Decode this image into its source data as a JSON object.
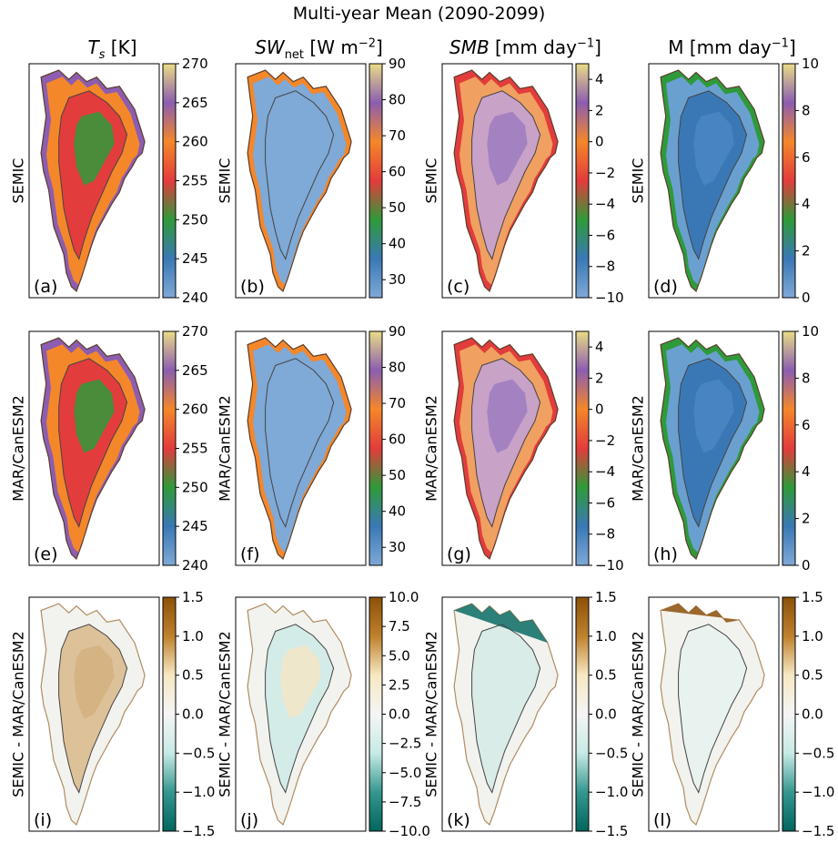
{
  "figure": {
    "title": "Multi-year Mean (2090-2099)",
    "columns": [
      {
        "var": "T",
        "sub": "s",
        "unit": " [K]",
        "italic": true
      },
      {
        "var": "SW",
        "sub": "net",
        "unit": " [W m",
        "sup": "−2",
        "tail": "]",
        "italic": true
      },
      {
        "var": "SMB",
        "sub": "",
        "unit": " [mm day",
        "sup": "−1",
        "tail": "]",
        "italic": true
      },
      {
        "var": "M",
        "sub": "",
        "unit": " [mm day",
        "sup": "−1",
        "tail": "]",
        "italic": false
      }
    ],
    "rows": [
      "SEMIC",
      "MAR/CanESM2",
      "SEMIC - MAR/CanESM2"
    ],
    "panel_labels": [
      "(a)",
      "(b)",
      "(c)",
      "(d)",
      "(e)",
      "(f)",
      "(g)",
      "(h)",
      "(i)",
      "(j)",
      "(k)",
      "(l)"
    ],
    "colorbars": [
      [
        {
          "ticks": [
            "240",
            "245",
            "250",
            "255",
            "260",
            "265",
            "270"
          ],
          "cmap": "tab_sequential"
        },
        {
          "ticks": [
            "30",
            "40",
            "50",
            "60",
            "70",
            "80",
            "90"
          ],
          "range": [
            25,
            90
          ],
          "cmap": "tab_sequential"
        },
        {
          "ticks": [
            "−10",
            "−8",
            "−6",
            "−4",
            "−2",
            "0",
            "2",
            "4"
          ],
          "range": [
            -10,
            5
          ],
          "cmap": "tab_sequential"
        },
        {
          "ticks": [
            "0",
            "2",
            "4",
            "6",
            "8",
            "10"
          ],
          "cmap": "tab_sequential"
        }
      ],
      [
        {
          "ticks": [
            "240",
            "245",
            "250",
            "255",
            "260",
            "265",
            "270"
          ],
          "cmap": "tab_sequential"
        },
        {
          "ticks": [
            "30",
            "40",
            "50",
            "60",
            "70",
            "80",
            "90"
          ],
          "range": [
            25,
            90
          ],
          "cmap": "tab_sequential"
        },
        {
          "ticks": [
            "−10",
            "−8",
            "−6",
            "−4",
            "−2",
            "0",
            "2",
            "4"
          ],
          "range": [
            -10,
            5
          ],
          "cmap": "tab_sequential"
        },
        {
          "ticks": [
            "0",
            "2",
            "4",
            "6",
            "8",
            "10"
          ],
          "cmap": "tab_sequential"
        }
      ],
      [
        {
          "ticks": [
            "−1.5",
            "−1.0",
            "−0.5",
            "0.0",
            "0.5",
            "1.0",
            "1.5"
          ],
          "cmap": "BrBG_r"
        },
        {
          "ticks": [
            "−10.0",
            "−7.5",
            "−5.0",
            "−2.5",
            "0.0",
            "2.5",
            "5.0",
            "7.5",
            "10.0"
          ],
          "cmap": "BrBG_r"
        },
        {
          "ticks": [
            "−1.5",
            "−1.0",
            "−0.5",
            "0.0",
            "0.5",
            "1.0",
            "1.5"
          ],
          "cmap": "BrBG_r"
        },
        {
          "ticks": [
            "−1.5",
            "−1.0",
            "−0.5",
            "0.0",
            "0.5",
            "1.0",
            "1.5"
          ],
          "cmap": "BrBG_r"
        }
      ]
    ],
    "colors": {
      "seq": [
        "#7fa9d6",
        "#3a78b5",
        "#2f9a3a",
        "#e23c3c",
        "#f4872a",
        "#8c5db0",
        "#e9dc86"
      ],
      "div_neg": "#01665e",
      "div_mid": "#f5f5f5",
      "div_pos": "#8c510a",
      "frame": "#000000",
      "contour": "#444444"
    }
  }
}
